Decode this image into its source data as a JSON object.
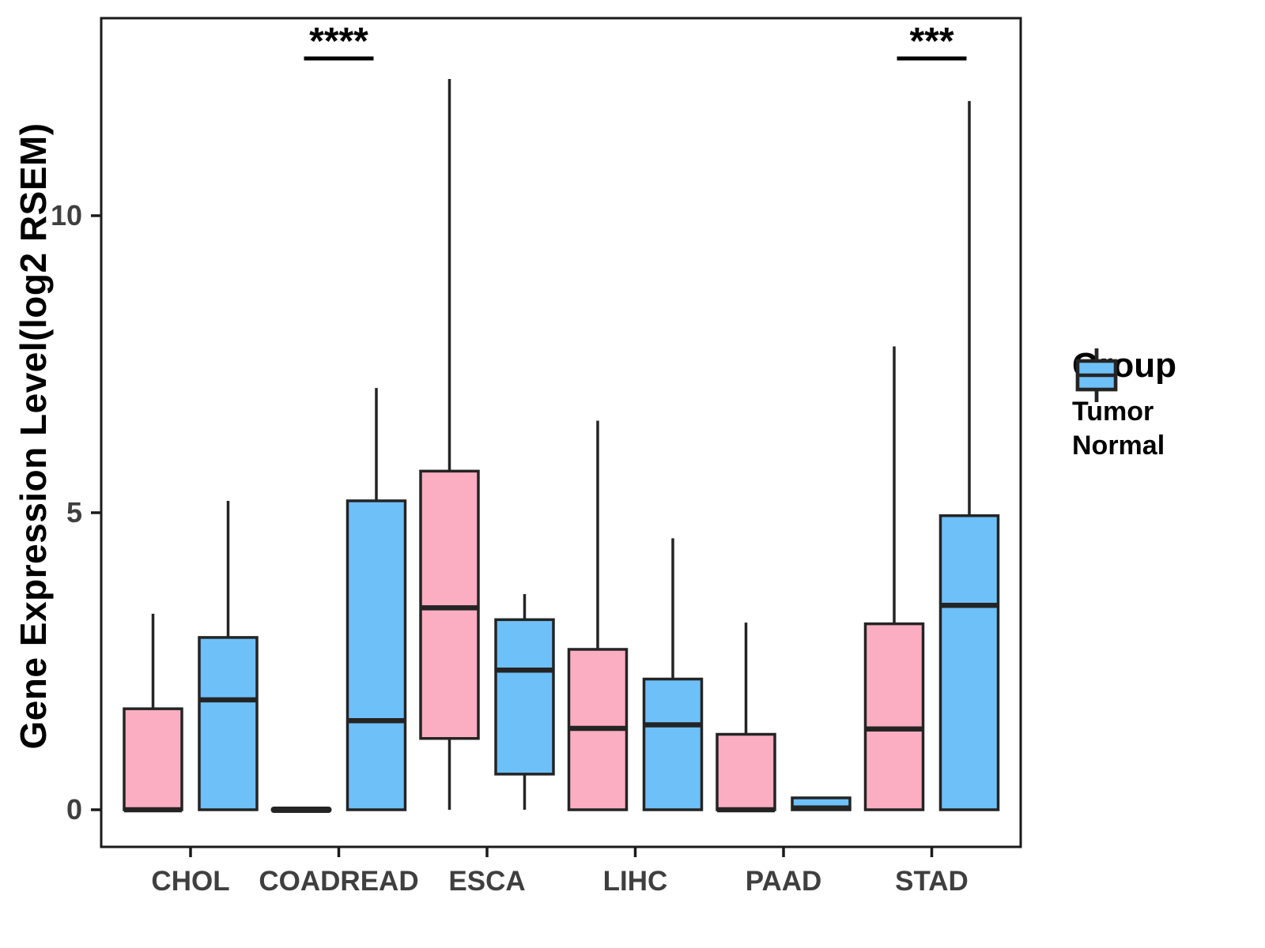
{
  "y_axis": {
    "label": "Gene Expression Level(log2 RSEM)",
    "ticks": [
      "0",
      "5",
      "10"
    ],
    "tick_values": [
      0,
      5,
      10
    ],
    "range": [
      -0.65,
      13.35
    ]
  },
  "x_axis": {
    "categories": [
      "CHOL",
      "COADREAD",
      "ESCA",
      "LIHC",
      "PAAD",
      "STAD"
    ]
  },
  "legend": {
    "title": "Group",
    "entries": [
      {
        "label": "Tumor",
        "color": "#FBAEC1"
      },
      {
        "label": "Normal",
        "color": "#6EC0F8"
      }
    ]
  },
  "colors": {
    "tumor_fill": "#FBAEC1",
    "normal_fill": "#6EC0F8",
    "box_stroke": "#242424",
    "axis_stroke": "#1a1a1a",
    "tick_label": "#3F3F3F",
    "annotation": "#000000",
    "background": "#ffffff"
  },
  "chart_data": {
    "type": "boxplot",
    "title": "",
    "xlabel": "",
    "ylabel": "Gene Expression Level(log2 RSEM)",
    "ylim": [
      -0.65,
      13.35
    ],
    "yticks": [
      0,
      5,
      10
    ],
    "grid": false,
    "legend_position": "right",
    "categories": [
      "CHOL",
      "COADREAD",
      "ESCA",
      "LIHC",
      "PAAD",
      "STAD"
    ],
    "series": [
      {
        "name": "Tumor",
        "color": "#FBAEC1",
        "boxes": [
          {
            "category": "CHOL",
            "lo": 0,
            "q1": 0,
            "med": 0,
            "q3": 1.7,
            "hi": 3.3
          },
          {
            "category": "COADREAD",
            "lo": 0,
            "q1": 0,
            "med": 0,
            "q3": 0,
            "hi": 0
          },
          {
            "category": "ESCA",
            "lo": 0,
            "q1": 1.2,
            "med": 3.4,
            "q3": 5.7,
            "hi": 12.3
          },
          {
            "category": "LIHC",
            "lo": 0,
            "q1": 0,
            "med": 1.37,
            "q3": 2.7,
            "hi": 6.55
          },
          {
            "category": "PAAD",
            "lo": 0,
            "q1": 0,
            "med": 0,
            "q3": 1.27,
            "hi": 3.15
          },
          {
            "category": "STAD",
            "lo": 0,
            "q1": 0,
            "med": 1.36,
            "q3": 3.13,
            "hi": 7.8
          }
        ]
      },
      {
        "name": "Normal",
        "color": "#6EC0F8",
        "boxes": [
          {
            "category": "CHOL",
            "lo": 0,
            "q1": 0,
            "med": 1.85,
            "q3": 2.9,
            "hi": 5.2
          },
          {
            "category": "COADREAD",
            "lo": 0,
            "q1": 0,
            "med": 1.5,
            "q3": 5.2,
            "hi": 7.1
          },
          {
            "category": "ESCA",
            "lo": 0,
            "q1": 0.6,
            "med": 2.35,
            "q3": 3.2,
            "hi": 3.63
          },
          {
            "category": "LIHC",
            "lo": 0,
            "q1": 0,
            "med": 1.43,
            "q3": 2.2,
            "hi": 4.57
          },
          {
            "category": "PAAD",
            "lo": 0,
            "q1": 0,
            "med": 0.03,
            "q3": 0.2,
            "hi": 0.2
          },
          {
            "category": "STAD",
            "lo": 0,
            "q1": 0,
            "med": 3.44,
            "q3": 4.95,
            "hi": 11.93
          }
        ]
      }
    ],
    "annotations": [
      {
        "category": "COADREAD",
        "text": "****"
      },
      {
        "category": "STAD",
        "text": "***"
      }
    ]
  }
}
